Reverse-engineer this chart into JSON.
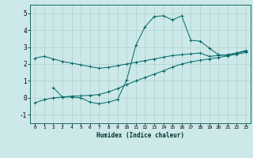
{
  "xlabel": "Humidex (Indice chaleur)",
  "background_color": "#cce8e8",
  "grid_color": "#b0d0d0",
  "line_color": "#006666",
  "xlim": [
    -0.5,
    23.5
  ],
  "ylim": [
    -1.5,
    5.5
  ],
  "xticks": [
    0,
    1,
    2,
    3,
    4,
    5,
    6,
    7,
    8,
    9,
    10,
    11,
    12,
    13,
    14,
    15,
    16,
    17,
    18,
    19,
    20,
    21,
    22,
    23
  ],
  "yticks": [
    -1,
    0,
    1,
    2,
    3,
    4,
    5
  ],
  "curve1_x": [
    0,
    1,
    2,
    3,
    4,
    5,
    6,
    7,
    8,
    9,
    10,
    11,
    12,
    13,
    14,
    15,
    16,
    17,
    18,
    19,
    20,
    21,
    22,
    23
  ],
  "curve1_y": [
    2.35,
    2.45,
    2.3,
    2.15,
    2.05,
    1.95,
    1.85,
    1.75,
    1.8,
    1.9,
    2.0,
    2.1,
    2.2,
    2.3,
    2.4,
    2.5,
    2.55,
    2.6,
    2.65,
    2.45,
    2.5,
    2.55,
    2.65,
    2.75
  ],
  "curve2_x": [
    0,
    1,
    2,
    3,
    4,
    5,
    6,
    7,
    8,
    9,
    10,
    11,
    12,
    13,
    14,
    15,
    16,
    17,
    18,
    19,
    20,
    21,
    22,
    23
  ],
  "curve2_y": [
    -0.3,
    -0.1,
    0.0,
    0.05,
    0.1,
    0.12,
    0.15,
    0.2,
    0.35,
    0.55,
    0.78,
    1.0,
    1.2,
    1.4,
    1.6,
    1.82,
    2.0,
    2.12,
    2.22,
    2.3,
    2.38,
    2.48,
    2.58,
    2.68
  ],
  "curve3_x": [
    2,
    3,
    4,
    5,
    6,
    7,
    8,
    9,
    10,
    11,
    12,
    13,
    14,
    15,
    16,
    17,
    18,
    19,
    20,
    21,
    22,
    23
  ],
  "curve3_y": [
    0.6,
    0.05,
    0.05,
    0.0,
    -0.25,
    -0.35,
    -0.25,
    -0.1,
    1.05,
    3.1,
    4.2,
    4.8,
    4.85,
    4.6,
    4.85,
    3.4,
    3.35,
    2.95,
    2.55,
    2.5,
    2.65,
    2.8
  ],
  "figsize": [
    3.2,
    2.0
  ],
  "dpi": 100
}
